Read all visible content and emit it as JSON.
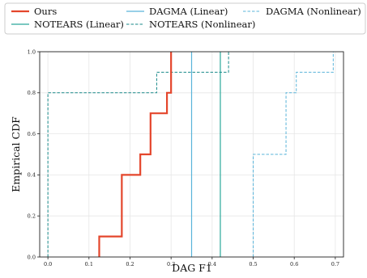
{
  "chart_data": {
    "type": "line",
    "subtype": "step-cdf",
    "title": "",
    "xlabel": "DAG F1",
    "ylabel": "Empirical CDF",
    "xlim": [
      -0.02,
      0.72
    ],
    "ylim": [
      0,
      1.0
    ],
    "xticks": [
      "0.0",
      "0.1",
      "0.2",
      "0.3",
      "0.4",
      "0.5",
      "0.6",
      "0.7"
    ],
    "yticks": [
      "0.0",
      "0.2",
      "0.4",
      "0.6",
      "0.8",
      "1.0"
    ],
    "grid": true,
    "legend_position": "top, above plot, 3 columns",
    "series": [
      {
        "name": "Ours",
        "color": "#e4462c",
        "style": "solid-thick",
        "points": [
          [
            0.125,
            0.0
          ],
          [
            0.125,
            0.1
          ],
          [
            0.18,
            0.1
          ],
          [
            0.18,
            0.4
          ],
          [
            0.225,
            0.4
          ],
          [
            0.225,
            0.5
          ],
          [
            0.25,
            0.5
          ],
          [
            0.25,
            0.7
          ],
          [
            0.29,
            0.7
          ],
          [
            0.29,
            0.8
          ],
          [
            0.3,
            0.8
          ],
          [
            0.3,
            1.0
          ]
        ]
      },
      {
        "name": "DAGMA (Linear)",
        "color": "#5ab4d9",
        "style": "solid-thin",
        "points": [
          [
            0.35,
            0.0
          ],
          [
            0.35,
            1.0
          ]
        ]
      },
      {
        "name": "DAGMA (Nonlinear)",
        "color": "#5ab4d9",
        "style": "dashed",
        "points": [
          [
            0.5,
            0.0
          ],
          [
            0.5,
            0.5
          ],
          [
            0.58,
            0.5
          ],
          [
            0.58,
            0.8
          ],
          [
            0.605,
            0.8
          ],
          [
            0.605,
            0.9
          ],
          [
            0.695,
            0.9
          ],
          [
            0.695,
            1.0
          ]
        ]
      },
      {
        "name": "NOTEARS (Linear)",
        "color": "#2aa89a",
        "style": "solid-thin",
        "points": [
          [
            0.42,
            0.0
          ],
          [
            0.42,
            1.0
          ]
        ]
      },
      {
        "name": "NOTEARS (Nonlinear)",
        "color": "#1a8a8a",
        "style": "dashed",
        "points": [
          [
            0.0,
            0.0
          ],
          [
            0.0,
            0.8
          ],
          [
            0.265,
            0.8
          ],
          [
            0.265,
            0.9
          ],
          [
            0.44,
            0.9
          ],
          [
            0.44,
            1.0
          ]
        ]
      }
    ]
  }
}
